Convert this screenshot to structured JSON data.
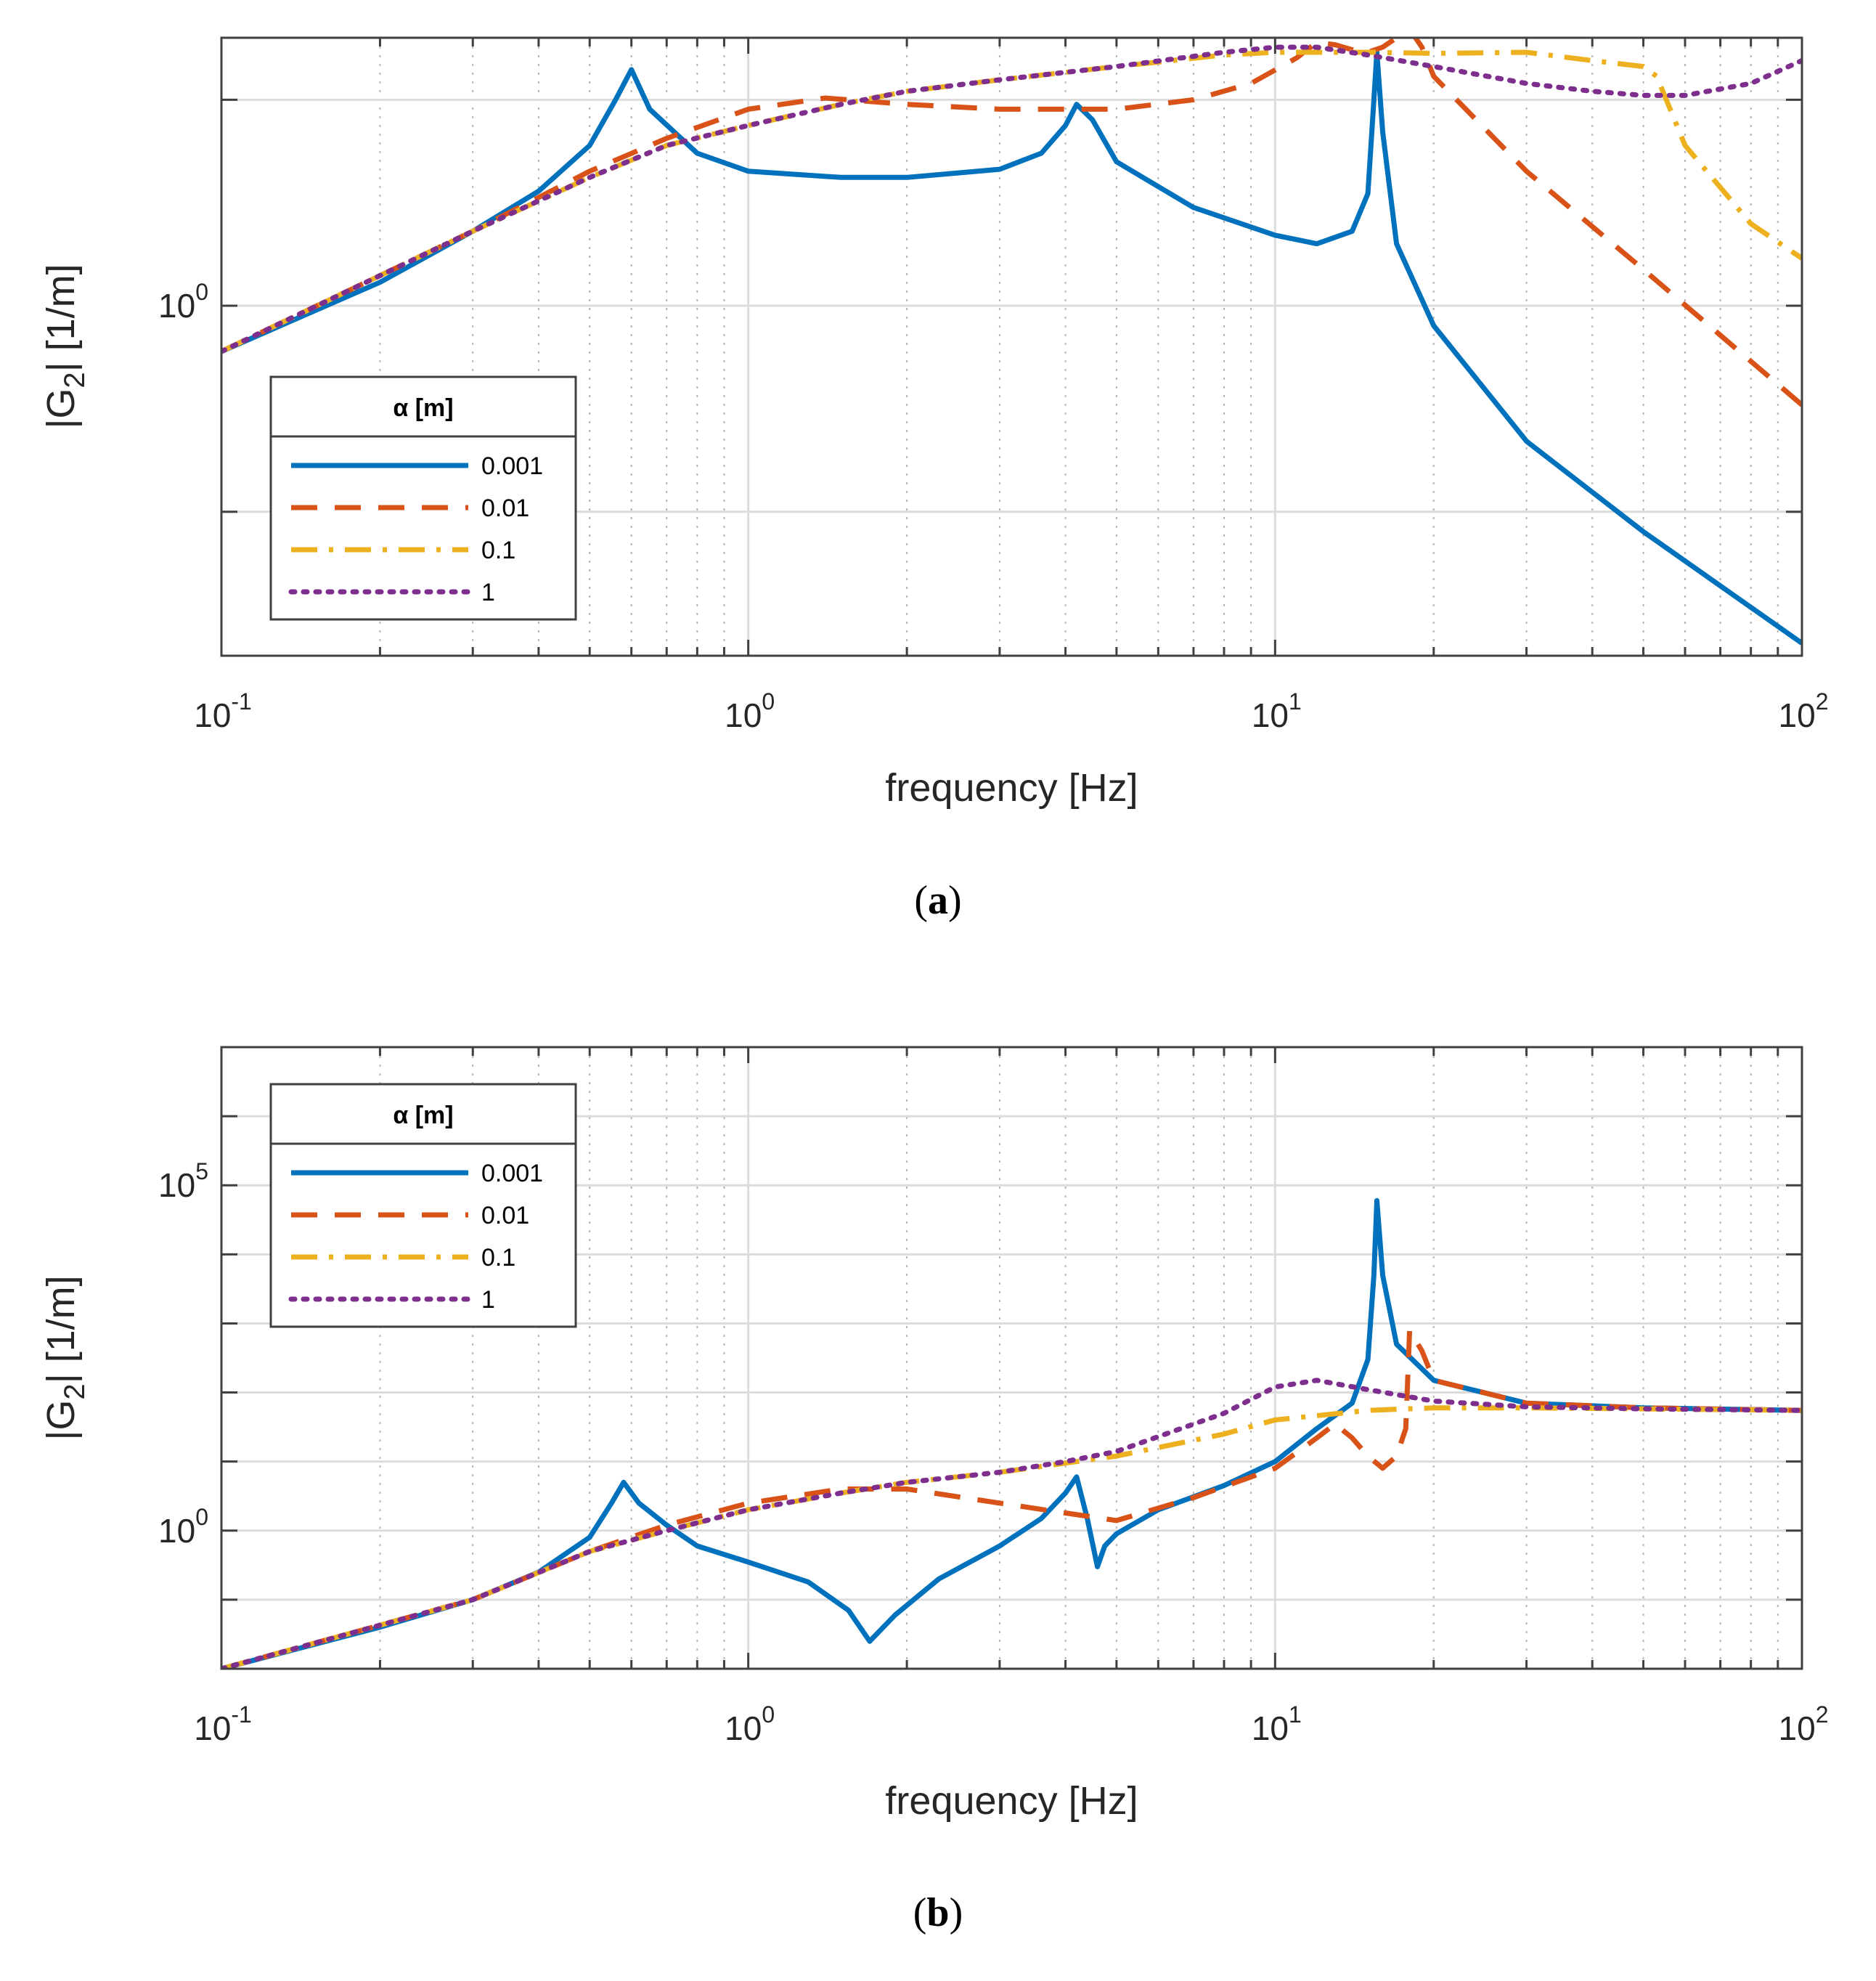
{
  "colors": {
    "axes": "#404040",
    "grid_major": "#dcdcdc",
    "grid_minor": "#b4b4b4"
  },
  "chart_data": [
    {
      "panel": "a",
      "caption_letter": "a",
      "type": "line",
      "xscale": "log",
      "yscale": "log",
      "xlim": [
        0.1,
        100
      ],
      "ylim": [
        0.02,
        20
      ],
      "xlabel": "frequency [Hz]",
      "ylabel": "|G2| [1/m]",
      "grid": true,
      "xticks": [
        0.1,
        1,
        10,
        100
      ],
      "xtick_labels": [
        {
          "base": "10",
          "exp": "-1"
        },
        {
          "base": "10",
          "exp": "0"
        },
        {
          "base": "10",
          "exp": "1"
        },
        {
          "base": "10",
          "exp": "2"
        }
      ],
      "yticks": [
        1
      ],
      "ytick_labels": [
        {
          "base": "10",
          "exp": "0"
        }
      ],
      "legend": {
        "title": "α [m]",
        "location": "lower-left"
      },
      "series": [
        {
          "name": "0.001",
          "color": "#0072BD",
          "style": "solid",
          "x": [
            0.1,
            0.2,
            0.3,
            0.4,
            0.5,
            0.56,
            0.6,
            0.65,
            0.8,
            1,
            1.5,
            2,
            3,
            3.6,
            4,
            4.2,
            4.5,
            5,
            7,
            10,
            12,
            14,
            15,
            15.4,
            15.6,
            16,
            17,
            20,
            30,
            50,
            100
          ],
          "y": [
            0.6,
            1.3,
            2.3,
            3.6,
            6.0,
            10.0,
            14.0,
            9.0,
            5.5,
            4.5,
            4.2,
            4.2,
            4.6,
            5.5,
            7.5,
            9.5,
            8.0,
            5.0,
            3.0,
            2.2,
            2.0,
            2.3,
            3.5,
            10.0,
            17.0,
            7.0,
            2.0,
            0.8,
            0.22,
            0.08,
            0.023
          ]
        },
        {
          "name": "0.01",
          "color": "#D95319",
          "style": "dashed",
          "x": [
            0.1,
            0.3,
            0.5,
            0.7,
            1,
            1.4,
            2,
            3,
            4,
            5,
            7,
            9,
            11,
            12,
            13,
            14,
            15,
            16,
            17,
            18,
            19,
            20,
            30,
            50,
            100
          ],
          "y": [
            0.6,
            2.3,
            4.5,
            6.5,
            9.0,
            10.2,
            9.5,
            9.0,
            9.0,
            9.0,
            10.0,
            12.0,
            16.0,
            19.0,
            18.5,
            17.5,
            17.0,
            18.0,
            20.0,
            22.0,
            18.0,
            13.0,
            4.5,
            1.5,
            0.33
          ]
        },
        {
          "name": "0.1",
          "color": "#EDB120",
          "style": "dashdot",
          "x": [
            0.1,
            0.3,
            0.5,
            0.7,
            1,
            1.5,
            2,
            3,
            5,
            8,
            10,
            12,
            15,
            20,
            30,
            40,
            50,
            53,
            60,
            80,
            100
          ],
          "y": [
            0.6,
            2.3,
            4.2,
            6.0,
            7.5,
            9.5,
            11.0,
            12.5,
            14.5,
            16.5,
            17.0,
            17.0,
            17.0,
            16.8,
            17.0,
            15.5,
            14.5,
            13.0,
            6.0,
            2.5,
            1.7
          ]
        },
        {
          "name": "1",
          "color": "#7E2F8E",
          "style": "dotted",
          "x": [
            0.1,
            0.3,
            0.5,
            0.7,
            1,
            1.5,
            2,
            3,
            5,
            8,
            10,
            12,
            15,
            20,
            30,
            40,
            50,
            60,
            80,
            100
          ],
          "y": [
            0.6,
            2.3,
            4.2,
            6.0,
            7.5,
            9.5,
            11.0,
            12.5,
            14.5,
            17.0,
            18.0,
            18.0,
            16.5,
            14.5,
            12.0,
            11.0,
            10.5,
            10.5,
            12.0,
            15.5
          ]
        }
      ]
    },
    {
      "panel": "b",
      "caption_letter": "b",
      "type": "line",
      "xscale": "log",
      "yscale": "log",
      "xlim": [
        0.1,
        100
      ],
      "ylim": [
        0.01,
        10000000
      ],
      "xlabel": "frequency [Hz]",
      "ylabel": "|G2| [1/m]",
      "grid": true,
      "xticks": [
        0.1,
        1,
        10,
        100
      ],
      "xtick_labels": [
        {
          "base": "10",
          "exp": "-1"
        },
        {
          "base": "10",
          "exp": "0"
        },
        {
          "base": "10",
          "exp": "1"
        },
        {
          "base": "10",
          "exp": "2"
        }
      ],
      "yticks": [
        1,
        100000
      ],
      "ytick_labels": [
        {
          "base": "10",
          "exp": "0"
        },
        {
          "base": "10",
          "exp": "5"
        }
      ],
      "legend": {
        "title": "α [m]",
        "location": "top-left"
      },
      "series": [
        {
          "name": "0.001",
          "color": "#0072BD",
          "style": "solid",
          "x": [
            0.1,
            0.2,
            0.3,
            0.4,
            0.5,
            0.55,
            0.58,
            0.62,
            0.7,
            0.8,
            1,
            1.3,
            1.55,
            1.7,
            1.9,
            2.3,
            3,
            3.6,
            4,
            4.2,
            4.4,
            4.6,
            4.75,
            5,
            6,
            8,
            10,
            12,
            14,
            15,
            15.4,
            15.6,
            16,
            17,
            20,
            30,
            50,
            100
          ],
          "y": [
            0.01,
            0.04,
            0.1,
            0.25,
            0.8,
            2.5,
            5.0,
            2.5,
            1.2,
            0.6,
            0.35,
            0.18,
            0.07,
            0.025,
            0.06,
            0.2,
            0.6,
            1.5,
            3.5,
            6.0,
            1.5,
            0.3,
            0.6,
            0.9,
            2.0,
            4.5,
            10.0,
            30.0,
            70.0,
            300.0,
            5000.0,
            60000.0,
            5000.0,
            500.0,
            150.0,
            70.0,
            60.0,
            55.0
          ]
        },
        {
          "name": "0.01",
          "color": "#D95319",
          "style": "dashed",
          "x": [
            0.1,
            0.3,
            0.5,
            0.7,
            1,
            1.5,
            2,
            3,
            4,
            5,
            7,
            10,
            12,
            13,
            14,
            15,
            16,
            17,
            17.7,
            18,
            19,
            20,
            30,
            50,
            100
          ],
          "y": [
            0.01,
            0.1,
            0.5,
            1.2,
            2.5,
            4.0,
            4.0,
            2.5,
            1.8,
            1.4,
            3.0,
            8.0,
            22.0,
            35.0,
            22.0,
            12.0,
            8.0,
            12.0,
            30.0,
            800.0,
            400.0,
            150.0,
            70.0,
            60.0,
            55.0
          ]
        },
        {
          "name": "0.1",
          "color": "#EDB120",
          "style": "dashdot",
          "x": [
            0.1,
            0.3,
            0.5,
            0.7,
            1,
            1.5,
            2,
            3,
            5,
            8,
            10,
            15,
            20,
            30,
            50,
            100
          ],
          "y": [
            0.01,
            0.1,
            0.5,
            1.0,
            2.0,
            3.5,
            5.0,
            7.0,
            12.0,
            25.0,
            40.0,
            55.0,
            60.0,
            60.0,
            58.0,
            55.0
          ]
        },
        {
          "name": "1",
          "color": "#7E2F8E",
          "style": "dotted",
          "x": [
            0.1,
            0.3,
            0.5,
            0.7,
            1,
            1.5,
            2,
            3,
            4,
            5,
            8,
            10,
            12,
            15,
            20,
            30,
            50,
            100
          ],
          "y": [
            0.01,
            0.1,
            0.5,
            1.0,
            2.0,
            3.5,
            5.0,
            7.0,
            10.0,
            14.0,
            50.0,
            120.0,
            150.0,
            110.0,
            75.0,
            62.0,
            58.0,
            55.0
          ]
        }
      ]
    }
  ]
}
